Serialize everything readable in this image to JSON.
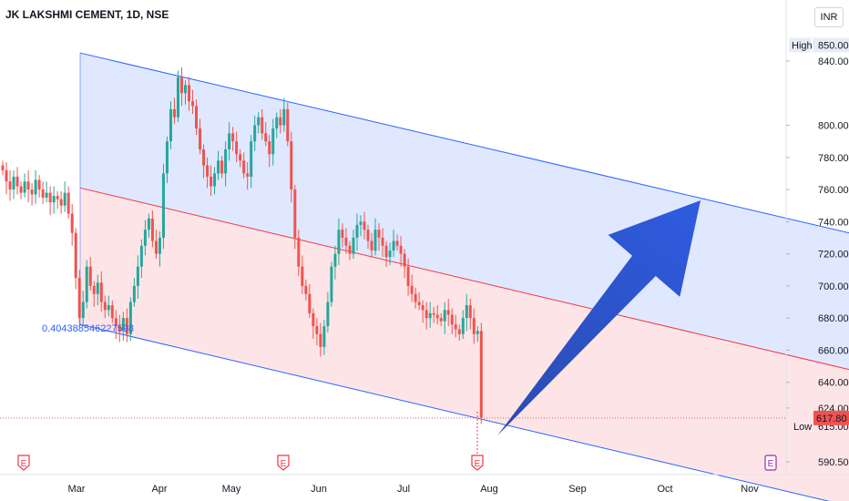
{
  "header": {
    "symbol_title": "JK LAKSHMI CEMENT, 1D, NSE",
    "currency": "INR"
  },
  "chart_data": {
    "type": "candlestick",
    "symbol": "JK LAKSHMI CEMENT",
    "interval": "1D",
    "exchange": "NSE",
    "y_ticks": [
      "840.00",
      "800.00",
      "780.00",
      "760.00",
      "740.00",
      "720.00",
      "700.00",
      "680.00",
      "660.00",
      "640.00",
      "624.00",
      "590.50"
    ],
    "x_ticks": [
      "Mar",
      "Apr",
      "May",
      "Jun",
      "Jul",
      "Aug",
      "Sep",
      "Oct",
      "Nov"
    ],
    "ylim": [
      585,
      860
    ],
    "high_label": "High",
    "high_value": "850.00",
    "low_label": "Low",
    "low_value": "615.00",
    "last_price": "617.80",
    "fib_label": "0.404388546227598",
    "channel": {
      "upper": [
        [
          88,
          845
        ],
        [
          932,
          733
        ]
      ],
      "middle": [
        [
          88,
          761
        ],
        [
          932,
          648
        ]
      ],
      "lower": [
        [
          88,
          676
        ],
        [
          932,
          563
        ]
      ]
    },
    "candles_close": [
      772,
      765,
      760,
      768,
      762,
      758,
      765,
      760,
      757,
      766,
      760,
      755,
      758,
      752,
      756,
      754,
      750,
      758,
      745,
      733,
      705,
      680,
      690,
      712,
      700,
      695,
      702,
      690,
      685,
      688,
      680,
      675,
      672,
      680,
      670,
      690,
      700,
      712,
      725,
      735,
      742,
      728,
      720,
      730,
      770,
      790,
      810,
      805,
      830,
      820,
      825,
      815,
      812,
      798,
      785,
      775,
      768,
      762,
      770,
      778,
      770,
      785,
      795,
      790,
      782,
      778,
      770,
      768,
      790,
      800,
      805,
      795,
      790,
      782,
      798,
      805,
      800,
      810,
      790,
      760,
      730,
      712,
      700,
      695,
      683,
      675,
      670,
      662,
      675,
      690,
      712,
      720,
      735,
      730,
      725,
      720,
      730,
      738,
      740,
      735,
      728,
      722,
      735,
      730,
      725,
      718,
      722,
      728,
      725,
      720,
      712,
      700,
      695,
      690,
      688,
      685,
      680,
      683,
      682,
      680,
      678,
      685,
      682,
      676,
      673,
      670,
      680,
      688,
      680,
      670,
      672,
      618
    ],
    "arrow": {
      "from_index": 132,
      "to": "Oct"
    },
    "events": [
      {
        "label": "E",
        "x_label": "Feb"
      },
      {
        "label": "E",
        "x_label": "May"
      },
      {
        "label": "E",
        "x_label": "Jul"
      },
      {
        "label": "E",
        "x_label": "Oct"
      }
    ]
  },
  "colors": {
    "up": "#26a69a",
    "down": "#ef5350",
    "channel_line": "#2962ff",
    "mid_line": "#f23645",
    "upper_fill": "rgba(41,98,255,0.15)",
    "lower_fill": "rgba(242,54,69,0.13)",
    "arrow": "#2e5be0",
    "event_red": "#f23645",
    "event_purple": "#9c27b0"
  }
}
